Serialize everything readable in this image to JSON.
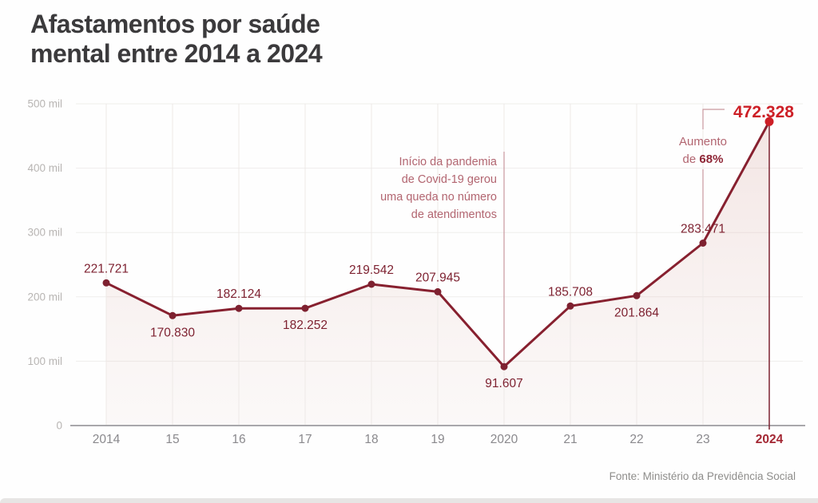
{
  "header": {
    "title_lines": [
      "Afastamentos por saúde",
      "mental entre 2014 a 2024"
    ]
  },
  "footer": {
    "source": "Fonte: Ministério da Previdência Social"
  },
  "chart_data": {
    "type": "line",
    "title": "Afastamentos por saúde mental entre 2014 a 2024",
    "x_tick_labels": [
      "2014",
      "15",
      "16",
      "17",
      "18",
      "19",
      "2020",
      "21",
      "22",
      "23",
      "2024"
    ],
    "values": [
      221721,
      170830,
      182124,
      182252,
      219542,
      207945,
      91607,
      185708,
      201864,
      283471,
      472328
    ],
    "point_labels": [
      "221.721",
      "170.830",
      "182.124",
      "182.252",
      "219.542",
      "207.945",
      "91.607",
      "185.708",
      "201.864",
      "283.471",
      "472.328"
    ],
    "label_side": [
      "above",
      "below",
      "above",
      "below",
      "above",
      "above",
      "below",
      "above",
      "below",
      "above",
      "above"
    ],
    "y_ticks": [
      0,
      100000,
      200000,
      300000,
      400000,
      500000
    ],
    "y_tick_labels": [
      "0",
      "100 mil",
      "200 mil",
      "300 mil",
      "400 mil",
      "500 mil"
    ],
    "ylim": [
      0,
      500000
    ],
    "grid": true,
    "legend": "none",
    "annotations": {
      "pandemic": {
        "lines": [
          "Início da pandemia",
          "de Covid-19 gerou",
          "uma queda no número",
          "de atendimentos"
        ],
        "anchor_index": 6
      },
      "increase": {
        "line1": "Aumento",
        "line2_prefix": "de ",
        "line2_bold": "68%",
        "anchor_index": 9
      }
    },
    "colors": {
      "title": "#3b3a3c",
      "line": "#87202f",
      "point": "#7e2130",
      "point_label": "#7e2231",
      "accent": "#cd1f26",
      "x_tick_accent": "#a32733",
      "annotation_text": "#b26570",
      "annotation_bold": "#8e2535",
      "annotation_line": "#c9989f",
      "final_line": "#7d2230",
      "grid_h": "#efedeb",
      "grid_v": "#ede9e7",
      "axis": "#a8a7ab",
      "y_tick": "#b8b5b3",
      "x_tick": "#8a898d",
      "area_top": "rgba(199,128,120,0.20)",
      "area_bottom": "rgba(226,199,193,0.10)",
      "source": "#8e8d8b"
    }
  }
}
